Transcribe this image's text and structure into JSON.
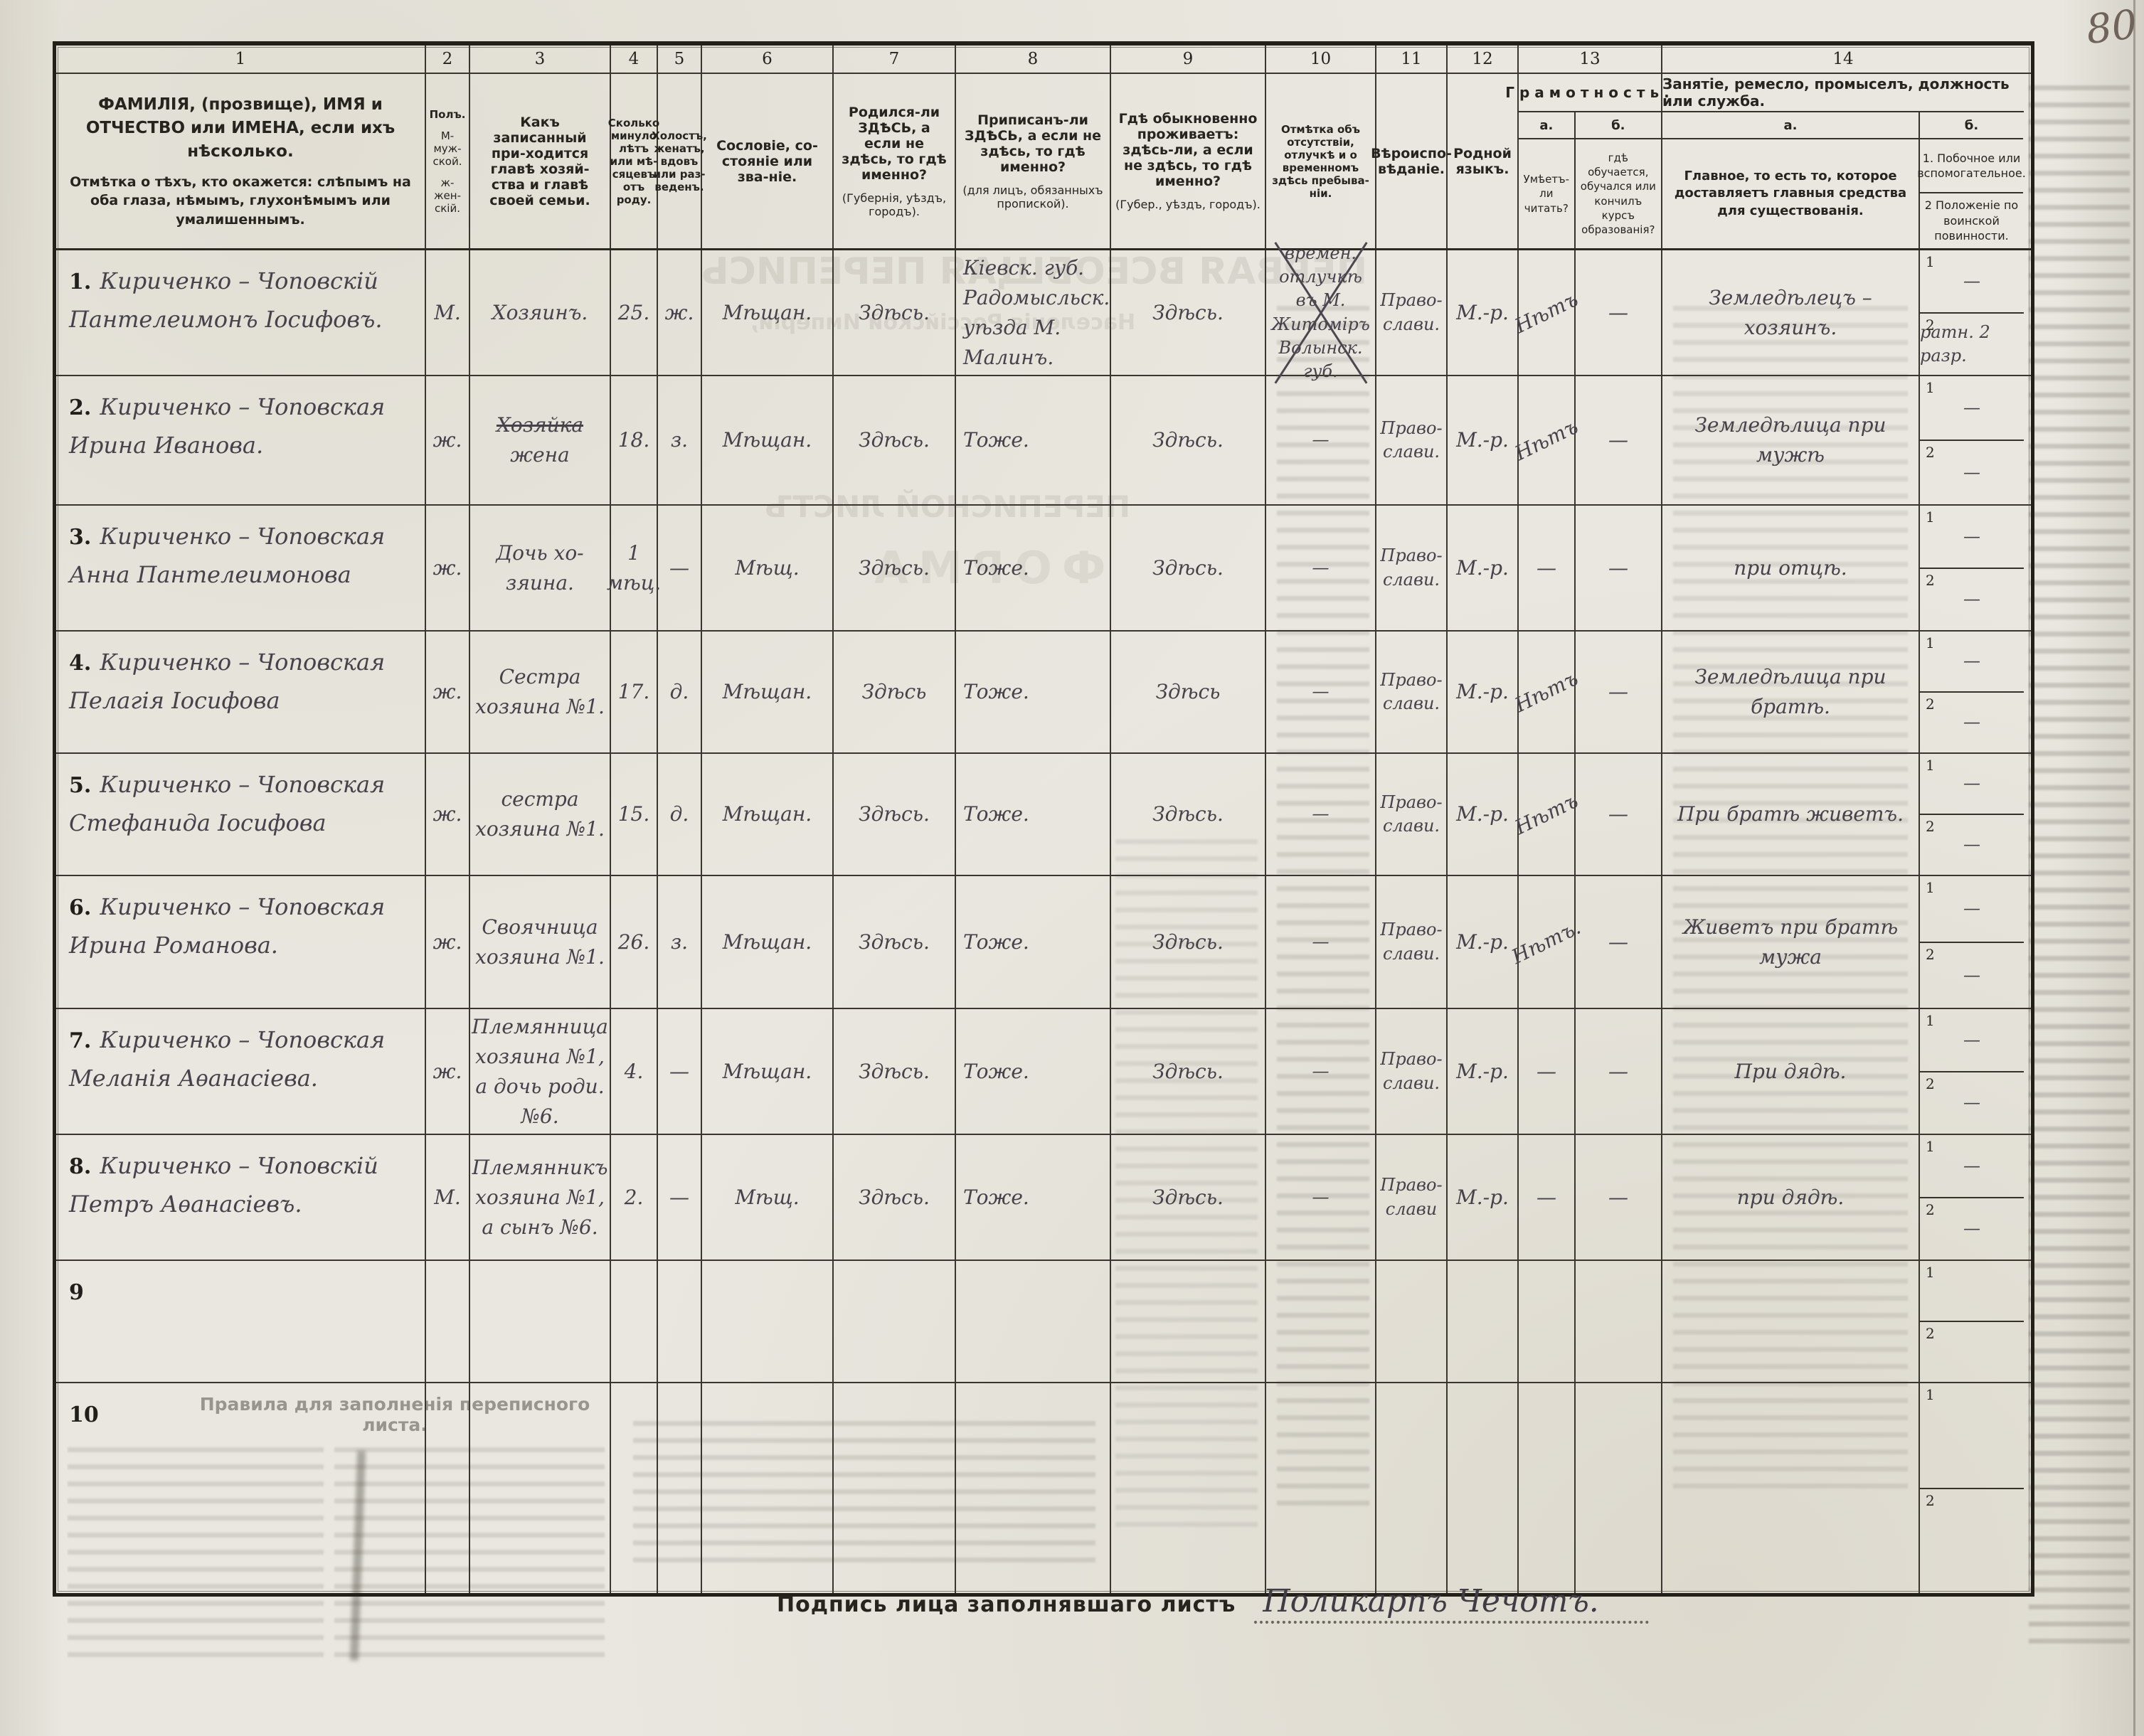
{
  "page": {
    "corner_number": "80"
  },
  "signature": {
    "label": "Подпись лица заполнявшаго листъ",
    "value": "Поликарпъ Чечотъ."
  },
  "bleedthrough": {
    "title": "ПЕРВАЯ ВСЕОБЩАЯ ПЕРЕПИСЬ",
    "subtitle": "Населенія Россійской Имперіи,",
    "sheet": "ПЕРЕПИСНОЙ ЛИСТЪ",
    "forma": "ФОРМА",
    "rules_title": "Правила для заполненія переписного листа."
  },
  "nums": [
    "1",
    "2",
    "3",
    "4",
    "5",
    "6",
    "7",
    "8",
    "9",
    "10",
    "11",
    "12",
    "13",
    "14"
  ],
  "labels": {
    "sub1": "1",
    "sub2": "2"
  },
  "headers": {
    "c1a": "ФАМИЛІЯ, (прозвище), ИМЯ и ОТЧЕСТВО или ИМЕНА, если ихъ нѣсколько.",
    "c1b": "Отмѣтка о тѣхъ, кто окажется: слѣпымъ на оба глаза, нѣмымъ, глухонѣмымъ или умалишеннымъ.",
    "c2a": "Полъ.",
    "c2b": "М-муж-ской.",
    "c2c": "ж-жен-скій.",
    "c3": "Какъ записанный при-ходится главѣ хозяй-ства и главѣ своей семьи.",
    "c4": "Сколько минуло лѣтъ или мѣ-сяцевъ отъ роду.",
    "c5": "Холостъ, женатъ, вдовъ или раз-веденъ.",
    "c6": "Сословіе, со-стояніе или зва-ніе.",
    "c7a": "Родился-ли ЗДѢСЬ, а если не здѣсь, то гдѣ именно?",
    "c7b": "(Губернія, уѣздъ, городъ).",
    "c8a": "Приписанъ-ли ЗДѢСЬ, а если не здѣсь, то гдѣ именно?",
    "c8b": "(для лицъ, обязанныхъ пропиской).",
    "c9a": "Гдѣ обыкновенно проживаетъ: здѣсь-ли, а если не здѣсь, то гдѣ именно?",
    "c9b": "(Губер., уѣздъ, городъ).",
    "c10": "Отмѣтка объ отсутствіи, отлучкѣ и о временномъ здѣсь пребыва-ніи.",
    "c11": "Вѣроиспо-вѣданіе.",
    "c12": "Родной языкъ.",
    "c13": "Грамотность.",
    "c13a_label": "а.",
    "c13b_label": "б.",
    "c13a": "Умѣетъ-ли читать?",
    "c13b": "гдѣ обучается, обучался или кончилъ курсъ образованія?",
    "c14": "Занятіе, ремесло, промыселъ, должность или служба.",
    "c14a_label": "а.",
    "c14b_label": "б.",
    "c14a": "Главное, то есть то, которое доставляетъ главныя средства для существованія.",
    "c14b1": "1. Побочное или вспомогательное.",
    "c14b2": "2 Положеніе по воинской повинности."
  },
  "rows": [
    {
      "no": "1.",
      "name": "Кириченко – Чоповскій Пантелеимонъ Іосифовъ.",
      "sex": "М.",
      "relation_struck": "",
      "relation": "Хозяинъ.",
      "age": "25.",
      "marital": "ж.",
      "estate": "Мѣщан.",
      "born": "Здѣсь.",
      "registered": "Кіевск. губ. Радомысльск. уѣзда М. Малинъ.",
      "resides": "Здѣсь.",
      "absence": "времен. отлучкѣ въ М. Житоміръ Волынск. губ.",
      "absence_crossed": true,
      "religion": "Право-слави.",
      "language": "М.-р.",
      "literacy_read": "Нѣтъ",
      "literacy_school": "—",
      "occupation": "Земледѣлецъ – хозяинъ.",
      "side1": "—",
      "side2": "ратн. 2 разр."
    },
    {
      "no": "2.",
      "name": "Кириченко – Чоповская Ирина Иванова.",
      "sex": "ж.",
      "relation_struck": "Хозяйка",
      "relation": "жена",
      "age": "18.",
      "marital": "з.",
      "estate": "Мѣщан.",
      "born": "Здѣсь.",
      "registered": "Тоже.",
      "resides": "Здѣсь.",
      "absence": "—",
      "religion": "Право-слави.",
      "language": "М.-р.",
      "literacy_read": "Нѣтъ",
      "literacy_school": "—",
      "occupation": "Земледѣлица при мужѣ",
      "side1": "—",
      "side2": "—"
    },
    {
      "no": "3.",
      "name": "Кириченко – Чоповская Анна Пантелеимонова",
      "sex": "ж.",
      "relation_struck": "",
      "relation": "Дочь хо-зяина.",
      "age": "1 мѣц.",
      "marital": "—",
      "estate": "Мѣщ.",
      "born": "Здѣсь.",
      "registered": "Тоже.",
      "resides": "Здѣсь.",
      "absence": "—",
      "religion": "Право-слави.",
      "language": "М.-р.",
      "literacy_read": "—",
      "literacy_school": "—",
      "occupation": "при отцѣ.",
      "side1": "—",
      "side2": "—"
    },
    {
      "no": "4.",
      "name": "Кириченко – Чоповская Пелагія Іосифова",
      "sex": "ж.",
      "relation_struck": "",
      "relation": "Сестра хозяина №1.",
      "age": "17.",
      "marital": "д.",
      "estate": "Мѣщан.",
      "born": "Здѣсь",
      "registered": "Тоже.",
      "resides": "Здѣсь",
      "absence": "—",
      "religion": "Право-слави.",
      "language": "М.-р.",
      "literacy_read": "Нѣтъ",
      "literacy_school": "—",
      "occupation": "Земледѣлица при братѣ.",
      "side1": "—",
      "side2": "—"
    },
    {
      "no": "5.",
      "name": "Кириченко – Чоповская Стефанида Іосифова",
      "sex": "ж.",
      "relation_struck": "",
      "relation": "сестра хозяина №1.",
      "age": "15.",
      "marital": "д.",
      "estate": "Мѣщан.",
      "born": "Здѣсь.",
      "registered": "Тоже.",
      "resides": "Здѣсь.",
      "absence": "—",
      "religion": "Право-слави.",
      "language": "М.-р.",
      "literacy_read": "Нѣтъ",
      "literacy_school": "—",
      "occupation": "При братѣ живетъ.",
      "side1": "—",
      "side2": "—"
    },
    {
      "no": "6.",
      "name": "Кириченко – Чоповская Ирина Романова.",
      "sex": "ж.",
      "relation_struck": "",
      "relation": "Своячница хозяина №1.",
      "age": "26.",
      "marital": "з.",
      "estate": "Мѣщан.",
      "born": "Здѣсь.",
      "registered": "Тоже.",
      "resides": "Здѣсь.",
      "absence": "—",
      "religion": "Право-слави.",
      "language": "М.-р.",
      "literacy_read": "Нѣтъ.",
      "literacy_school": "—",
      "occupation": "Живетъ при братѣ мужа",
      "side1": "—",
      "side2": "—"
    },
    {
      "no": "7.",
      "name": "Кириченко – Чоповская Меланія Аѳанасіева.",
      "sex": "ж.",
      "relation_struck": "",
      "relation": "Племянница хозяина №1, а дочь роди. №6.",
      "age": "4.",
      "marital": "—",
      "estate": "Мѣщан.",
      "born": "Здѣсь.",
      "registered": "Тоже.",
      "resides": "Здѣсь.",
      "absence": "—",
      "religion": "Право-слави.",
      "language": "М.-р.",
      "literacy_read": "—",
      "literacy_school": "—",
      "occupation": "При дядѣ.",
      "side1": "—",
      "side2": "—"
    },
    {
      "no": "8.",
      "name": "Кириченко – Чоповскій Петръ Аѳанасіевъ.",
      "sex": "М.",
      "relation_struck": "",
      "relation": "Племянникъ хозяина №1, а сынъ №6.",
      "age": "2.",
      "marital": "—",
      "estate": "Мѣщ.",
      "born": "Здѣсь.",
      "registered": "Тоже.",
      "resides": "Здѣсь.",
      "absence": "—",
      "religion": "Право-слави",
      "language": "М.-р.",
      "literacy_read": "—",
      "literacy_school": "—",
      "occupation": "при дядѣ.",
      "side1": "—",
      "side2": "—"
    },
    {
      "no": "9",
      "name": "",
      "sex": "",
      "relation_struck": "",
      "relation": "",
      "age": "",
      "marital": "",
      "estate": "",
      "born": "",
      "registered": "",
      "resides": "",
      "absence": "",
      "religion": "",
      "language": "",
      "literacy_read": "",
      "literacy_school": "",
      "occupation": "",
      "side1": "",
      "side2": ""
    },
    {
      "no": "10",
      "name": "",
      "sex": "",
      "relation_struck": "",
      "relation": "",
      "age": "",
      "marital": "",
      "estate": "",
      "born": "",
      "registered": "",
      "resides": "",
      "absence": "",
      "religion": "",
      "language": "",
      "literacy_read": "",
      "literacy_school": "",
      "occupation": "",
      "side1": "",
      "side2": ""
    }
  ]
}
